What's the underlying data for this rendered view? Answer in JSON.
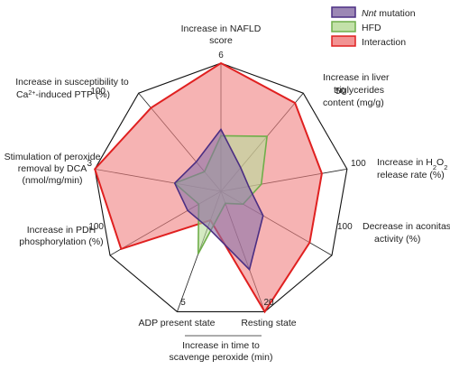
{
  "chart_data": {
    "type": "radar",
    "axes": [
      {
        "label_lines": [
          "Increase in NAFLD",
          "score"
        ],
        "max_label": "6",
        "max": 6
      },
      {
        "label_lines": [
          "Increase in liver",
          "triglycerides",
          "content (mg/g)"
        ],
        "max_label": "50",
        "max": 50
      },
      {
        "label_lines": [
          "Increase in H",
          "release rate (%)"
        ],
        "sub_text": "2",
        "sub_tail": "O",
        "sub_text2": "2",
        "max_label": "100",
        "max": 100
      },
      {
        "label_lines": [
          "Decrease in aconitase",
          "activity (%)"
        ],
        "max_label": "100",
        "max": 100
      },
      {
        "label_lines": [
          "Resting state"
        ],
        "max_label": "20",
        "max": 20
      },
      {
        "label_lines": [
          "ADP present state"
        ],
        "max_label": "5",
        "max": 5
      },
      {
        "label_lines": [
          "Increase in PDH",
          "phosphorylation (%)"
        ],
        "max_label": "100",
        "max": 100
      },
      {
        "label_lines": [
          "Stimulation of peroxide",
          "removal by DCA",
          "(nmol/mg/min)"
        ],
        "max_label": "3",
        "max": 3
      },
      {
        "label_lines": [
          "Increase in susceptibility to",
          "-induced PTP (%)"
        ],
        "ca_text": "Ca",
        "ca_sup": "2+",
        "max_label": "100",
        "max": 100
      }
    ],
    "group_label_lines": [
      "Increase in time to",
      "scavenge peroxide  (min)"
    ],
    "series": [
      {
        "name": "Interaction",
        "color_fill": "#f08080",
        "color_line": "#e02020",
        "values": [
          6,
          45,
          80,
          80,
          20,
          1.2,
          90,
          3,
          85
        ]
      },
      {
        "name": "HFD",
        "color_fill": "#b8dc9a",
        "color_line": "#6fae4a",
        "values": [
          2.6,
          28,
          32,
          20,
          2,
          2.6,
          20,
          1.1,
          20
        ]
      },
      {
        "name": "Nnt mutation",
        "name_italic": "Nnt",
        "name_rest": " mutation",
        "color_fill": "#8b72a8",
        "color_line": "#4b2e83",
        "values": [
          2.9,
          12,
          22,
          38,
          13,
          1.5,
          30,
          1.1,
          30
        ]
      }
    ],
    "legend_position": "top-right",
    "grid": "nonagon"
  }
}
